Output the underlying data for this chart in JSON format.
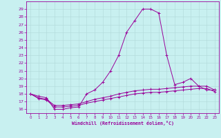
{
  "xlabel": "Windchill (Refroidissement éolien,°C)",
  "bg_color": "#c8f0f0",
  "grid_color": "#b0d8d8",
  "line_color": "#990099",
  "hours": [
    0,
    1,
    2,
    3,
    4,
    5,
    6,
    7,
    8,
    9,
    10,
    11,
    12,
    13,
    14,
    15,
    16,
    17,
    18,
    19,
    20,
    21,
    22,
    23
  ],
  "series1": [
    18.0,
    17.7,
    17.5,
    16.0,
    16.0,
    16.2,
    16.3,
    18.0,
    18.5,
    19.5,
    21.0,
    23.0,
    26.0,
    27.5,
    29.0,
    29.0,
    28.5,
    23.0,
    19.2,
    19.5,
    20.0,
    19.0,
    18.5,
    18.5
  ],
  "series2": [
    18.0,
    17.5,
    17.3,
    16.5,
    16.5,
    16.6,
    16.7,
    17.0,
    17.3,
    17.5,
    17.7,
    18.0,
    18.2,
    18.4,
    18.5,
    18.6,
    18.6,
    18.7,
    18.8,
    18.9,
    19.0,
    19.0,
    19.0,
    18.5
  ],
  "series3": [
    18.0,
    17.4,
    17.2,
    16.3,
    16.3,
    16.4,
    16.5,
    16.8,
    17.0,
    17.2,
    17.4,
    17.6,
    17.8,
    18.0,
    18.1,
    18.2,
    18.2,
    18.3,
    18.4,
    18.5,
    18.6,
    18.7,
    18.7,
    18.3
  ],
  "ylim": [
    15.5,
    30.0
  ],
  "ytick_min": 16,
  "ytick_max": 29,
  "xticks": [
    0,
    1,
    2,
    3,
    4,
    5,
    6,
    7,
    8,
    9,
    10,
    11,
    12,
    13,
    14,
    15,
    16,
    17,
    18,
    19,
    20,
    21,
    22,
    23
  ]
}
